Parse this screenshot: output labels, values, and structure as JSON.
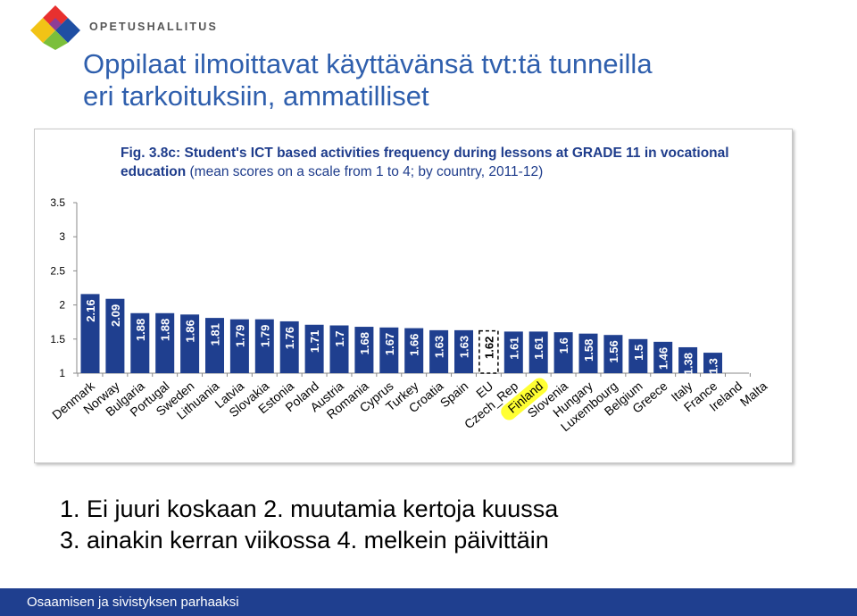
{
  "brand": {
    "name": "OPETUSHALLITUS"
  },
  "slide": {
    "title_line1": "Oppilaat ilmoittavat käyttävänsä tvt:tä tunneilla",
    "title_line2": "eri tarkoituksiin, ammatilliset"
  },
  "legend": {
    "line1": "1.   Ei juuri koskaan 2. muutamia kertoja kuussa",
    "line2": "3. ainakin kerran viikossa 4. melkein päivittäin"
  },
  "footer": {
    "text": "Osaamisen ja sivistyksen parhaaksi"
  },
  "colors": {
    "bar": "#1f3f8f",
    "title_blue": "#2f5fad",
    "footer_bg": "#1f3f8f",
    "highlight": "#ffff33",
    "eu_bar": "#ffffff"
  },
  "chart_data": {
    "type": "bar",
    "title_bold": "Fig. 3.8c: Student's ICT based activities frequency during lessons at GRADE 11 in vocational education",
    "title_normal": " (mean scores on a scale from 1 to 4; by country, 2011-12)",
    "ylim": [
      1,
      3.5
    ],
    "yticks": [
      1,
      1.5,
      2,
      2.5,
      3,
      3.5
    ],
    "ytick_labels": [
      "1",
      "1.5",
      "2",
      "2.5",
      "3",
      "3.5"
    ],
    "grid": false,
    "categories": [
      "Denmark",
      "Norway",
      "Bulgaria",
      "Portugal",
      "Sweden",
      "Lithuania",
      "Latvia",
      "Slovakia",
      "Estonia",
      "Poland",
      "Austria",
      "Romania",
      "Cyprus",
      "Turkey",
      "Croatia",
      "Spain",
      "EU",
      "Czech_Rep",
      "Finland",
      "Slovenia",
      "Hungary",
      "Luxembourg",
      "Belgium",
      "Greece",
      "Italy",
      "France",
      "Ireland",
      "Malta"
    ],
    "values": [
      2.16,
      2.09,
      1.88,
      1.88,
      1.86,
      1.81,
      1.79,
      1.79,
      1.76,
      1.71,
      1.7,
      1.68,
      1.67,
      1.66,
      1.63,
      1.63,
      1.62,
      1.61,
      1.61,
      1.6,
      1.58,
      1.56,
      1.5,
      1.46,
      1.38,
      1.3,
      null,
      null
    ],
    "value_labels": [
      "2.16",
      "2.09",
      "1.88",
      "1.88",
      "1.86",
      "1.81",
      "1.79",
      "1.79",
      "1.76",
      "1.71",
      "1.7",
      "1.68",
      "1.67",
      "1.66",
      "1.63",
      "1.63",
      "1.62",
      "1.61",
      "1.61",
      "1.6",
      "1.58",
      "1.56",
      "1.5",
      "1.46",
      "1.38",
      "1.3",
      "",
      ""
    ],
    "highlighted_category": "Finland",
    "dashed_category": "EU"
  }
}
